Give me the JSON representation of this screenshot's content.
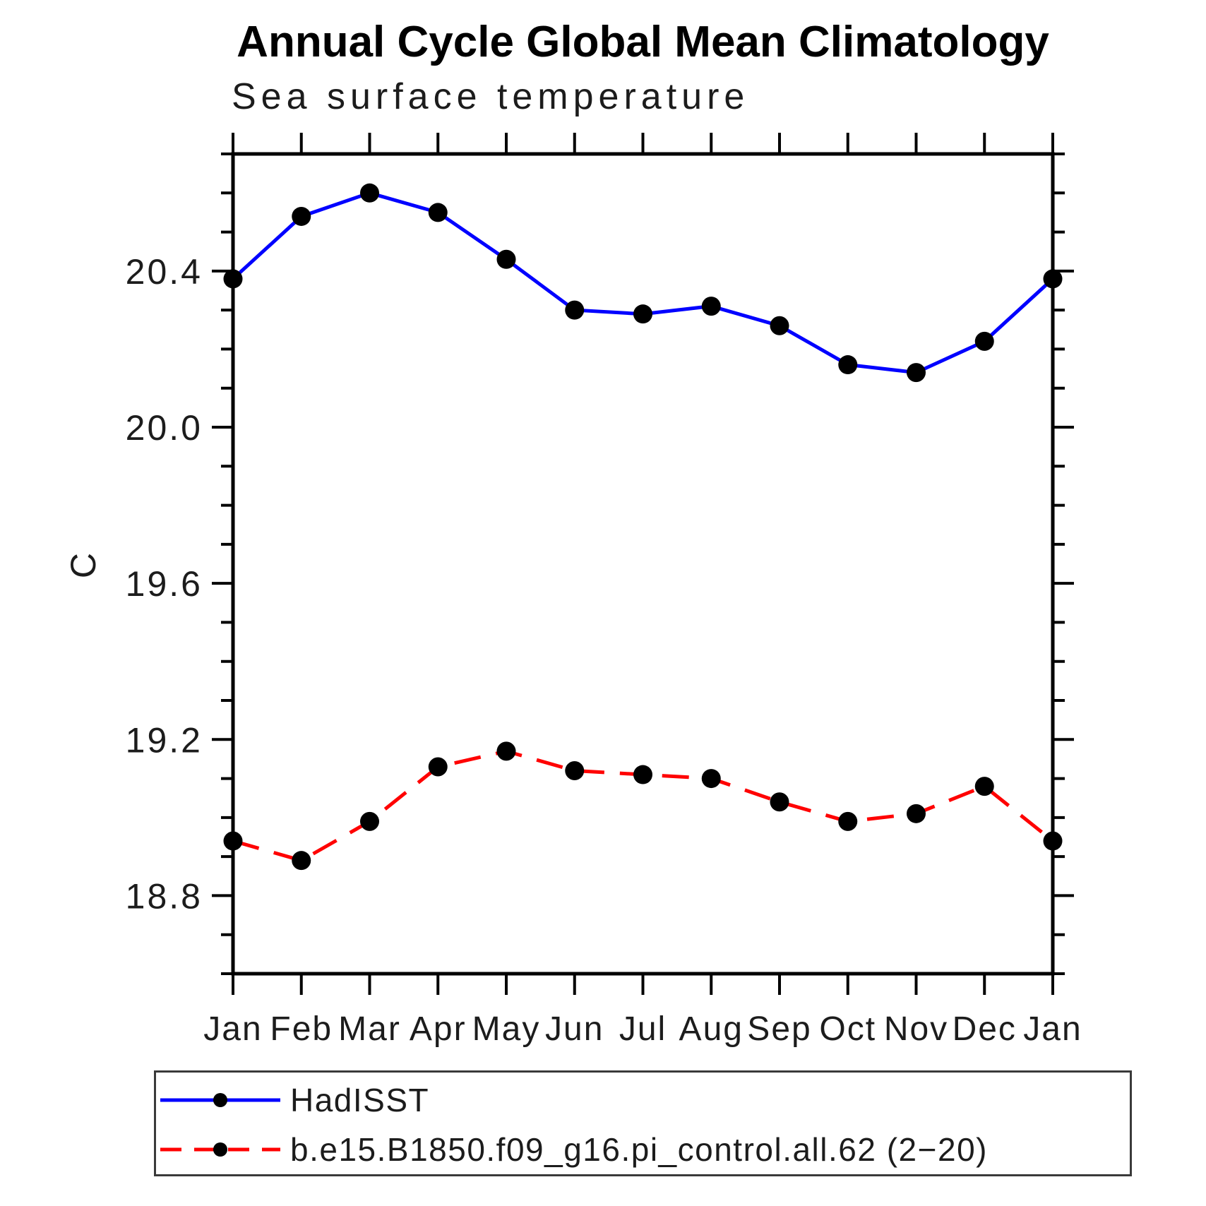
{
  "legend": {
    "items": [
      {
        "label": "HadISST",
        "color": "#0000ff",
        "line_style": "solid",
        "marker_color": "#000000"
      },
      {
        "label": "b.e15.B1850.f09_g16.pi_control.all.62 (2−20)",
        "color": "#ff0000",
        "line_style": "dashed",
        "marker_color": "#000000"
      }
    ]
  },
  "chart_data": {
    "type": "line",
    "title": "Annual Cycle Global Mean Climatology",
    "subtitle": "Sea surface temperature",
    "ylabel": "C",
    "categories": [
      "Jan",
      "Feb",
      "Mar",
      "Apr",
      "May",
      "Jun",
      "Jul",
      "Aug",
      "Sep",
      "Oct",
      "Nov",
      "Dec",
      "Jan"
    ],
    "series": [
      {
        "name": "HadISST",
        "color": "#0000ff",
        "line_style": "solid",
        "marker": "circle",
        "marker_color": "#000000",
        "values": [
          20.38,
          20.54,
          20.6,
          20.55,
          20.43,
          20.3,
          20.29,
          20.31,
          20.26,
          20.16,
          20.14,
          20.22,
          20.38
        ]
      },
      {
        "name": "b.e15.B1850.f09_g16.pi_control.all.62 (2−20)",
        "color": "#ff0000",
        "line_style": "dashed",
        "marker": "circle",
        "marker_color": "#000000",
        "values": [
          18.94,
          18.89,
          18.99,
          19.13,
          19.17,
          19.12,
          19.11,
          19.1,
          19.04,
          18.99,
          19.01,
          19.08,
          18.94
        ]
      }
    ],
    "ylim": [
      18.6,
      20.7
    ],
    "y_major_ticks": [
      18.8,
      19.2,
      19.6,
      20.0,
      20.4
    ],
    "y_tick_labels": [
      "18.8",
      "19.2",
      "19.6",
      "20.0",
      "20.4"
    ],
    "y_minor_step": 0.1,
    "grid": false,
    "legend_position": "bottom"
  }
}
